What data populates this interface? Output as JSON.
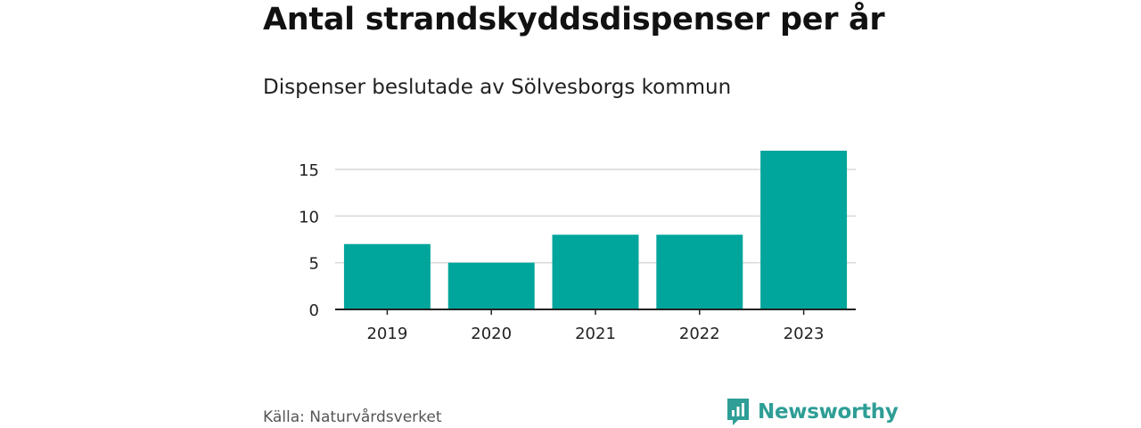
{
  "header": {
    "title": "Antal strandskyddsdispenser per år",
    "subtitle": "Dispenser beslutade av Sölvesborgs kommun"
  },
  "footer": {
    "source": "Källa: Naturvårdsverket",
    "brand": "Newsworthy",
    "brand_icon": "newsworthy-logo-icon"
  },
  "colors": {
    "bar": "#00a59b",
    "grid": "#d9d9d9",
    "axis": "#222222",
    "brand": "#2e9e96"
  },
  "chart_data": {
    "type": "bar",
    "title": "Antal strandskyddsdispenser per år",
    "subtitle": "Dispenser beslutade av Sölvesborgs kommun",
    "categories": [
      "2019",
      "2020",
      "2021",
      "2022",
      "2023"
    ],
    "values": [
      7,
      5,
      8,
      8,
      17
    ],
    "xlabel": "",
    "ylabel": "",
    "ylim": [
      0,
      17
    ],
    "yticks": [
      0,
      5,
      10,
      15
    ],
    "grid": true,
    "legend": "none"
  }
}
